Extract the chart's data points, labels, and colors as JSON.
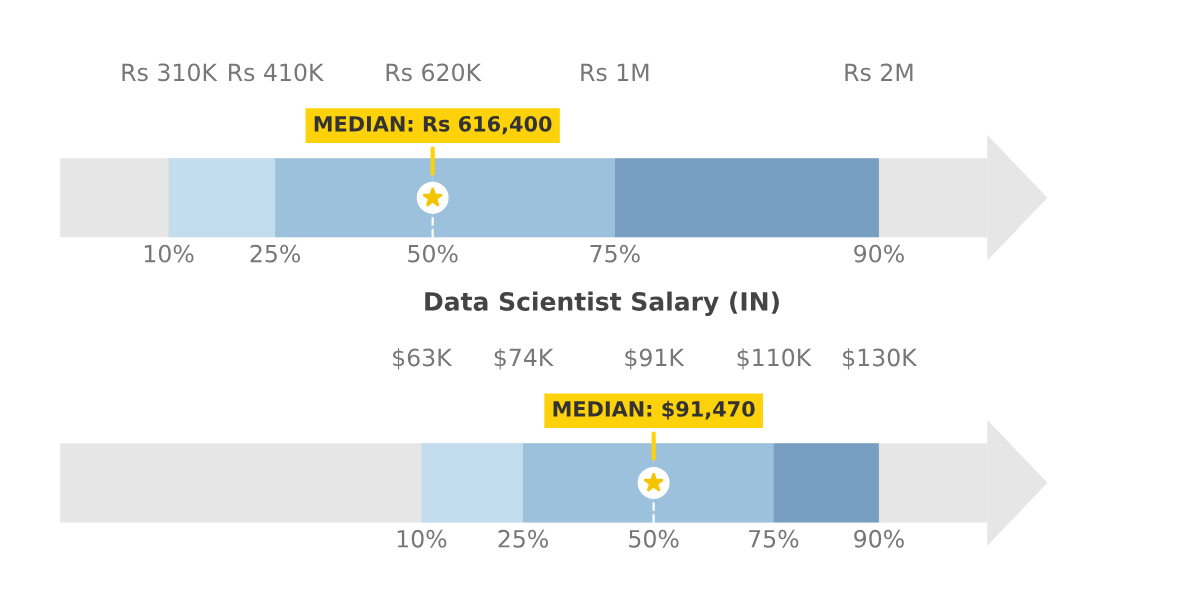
{
  "chart_data": [
    {
      "type": "other",
      "categories": [
        "10%",
        "25%",
        "50%",
        "75%",
        "90%"
      ],
      "values": [
        310000,
        410000,
        620000,
        1000000,
        2000000
      ],
      "value_labels": [
        "Rs 310K",
        "Rs 410K",
        "Rs 620K",
        "Rs 1M",
        "Rs 2M"
      ],
      "colors": [
        "#e6e6e6",
        "#c3ddee",
        "#9cc1dc",
        "#9cc1dc",
        "#769fc1"
      ],
      "annotations": [
        "MEDIAN: Rs 616,400"
      ]
    },
    {
      "type": "other",
      "title": "Data Scientist Salary (IN)",
      "categories": [
        "10%",
        "25%",
        "50%",
        "75%",
        "90%"
      ],
      "values": [
        63000,
        74000,
        91000,
        110000,
        130000
      ],
      "value_labels": [
        "$63K",
        "$74K",
        "$91K",
        "$110K",
        "$130K"
      ],
      "colors": [
        "#e6e6e6",
        "#c3ddee",
        "#9cc1dc",
        "#9cc1dc",
        "#769fc1"
      ],
      "annotations": [
        "MEDIAN: $91,470"
      ]
    }
  ]
}
